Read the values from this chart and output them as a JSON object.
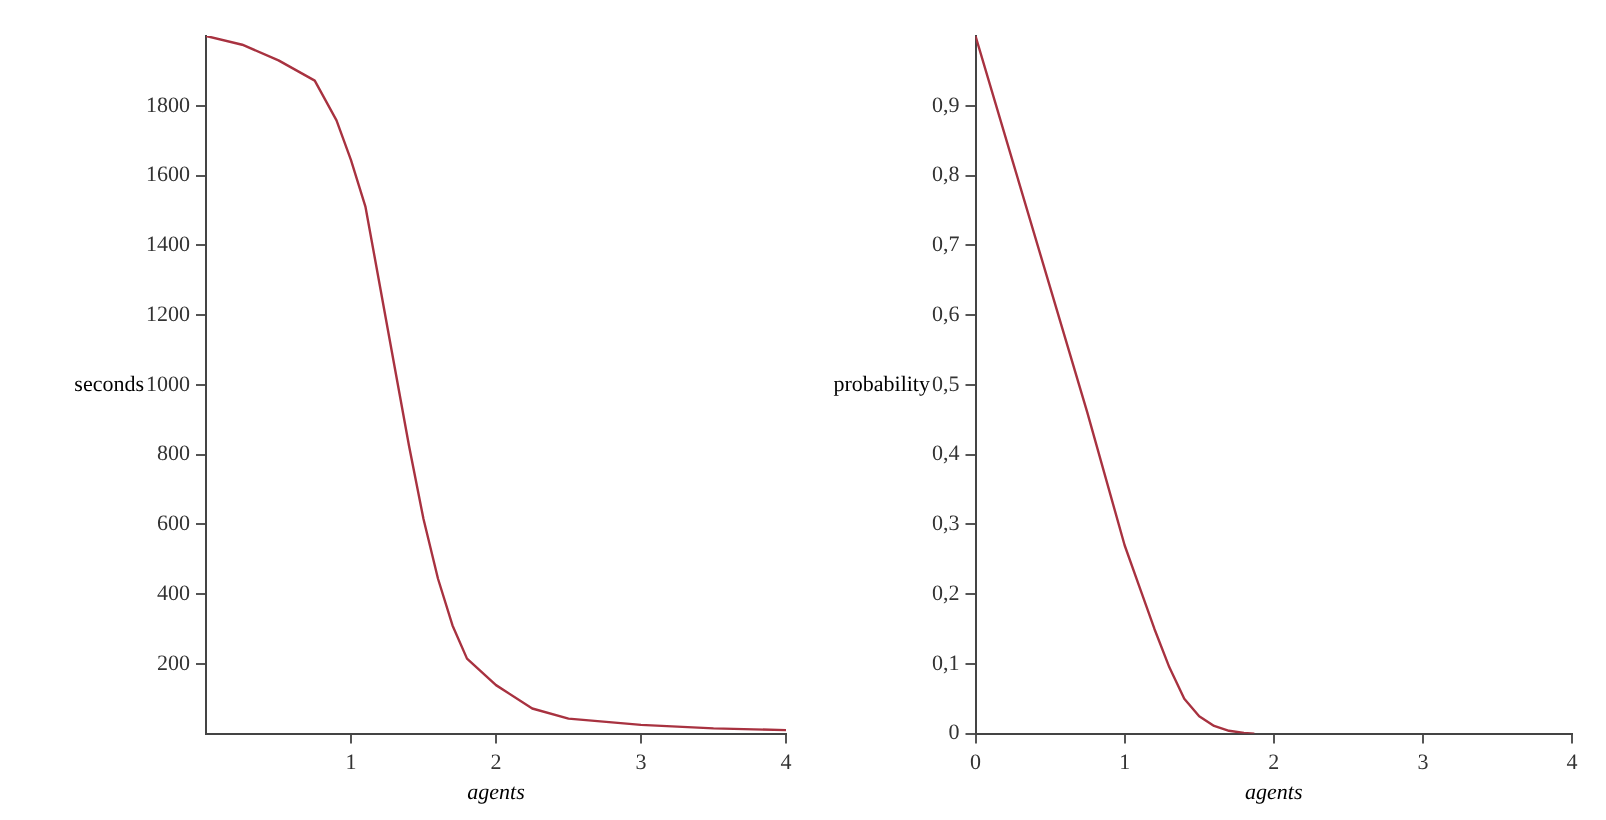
{
  "chart_data": [
    {
      "type": "line",
      "xlabel": "agents",
      "ylabel": "seconds",
      "x": [
        0,
        0.25,
        0.5,
        0.75,
        0.9,
        1.0,
        1.1,
        1.2,
        1.3,
        1.4,
        1.5,
        1.6,
        1.7,
        1.8,
        2.0,
        2.25,
        2.5,
        3.0,
        3.5,
        4.0
      ],
      "series": [
        {
          "color": "#a83240",
          "values": [
            2000,
            1975,
            1930,
            1872,
            1758,
            1644,
            1510,
            1282,
            1053,
            825,
            615,
            444,
            310,
            215,
            139,
            72,
            43,
            25,
            15,
            10
          ]
        }
      ],
      "xlim": [
        0,
        4
      ],
      "xticks": [
        1,
        2,
        3,
        4
      ],
      "ylim": [
        0,
        2000
      ],
      "yticks": [
        200,
        400,
        600,
        800,
        1000,
        1200,
        1400,
        1600,
        1800
      ],
      "grid": false,
      "legend": false
    },
    {
      "type": "line",
      "xlabel": "agents",
      "ylabel": "probability",
      "x": [
        0,
        0.25,
        0.5,
        0.75,
        1.0,
        1.1,
        1.2,
        1.3,
        1.4,
        1.5,
        1.6,
        1.7,
        1.8,
        1.87
      ],
      "series": [
        {
          "color": "#a83240",
          "values": [
            1.0,
            0.82,
            0.64,
            0.46,
            0.27,
            0.21,
            0.15,
            0.095,
            0.05,
            0.025,
            0.011,
            0.004,
            0.001,
            0
          ]
        }
      ],
      "xlim": [
        0,
        4
      ],
      "xticks": [
        0,
        1,
        2,
        3,
        4
      ],
      "ylim": [
        0,
        1
      ],
      "yticks": [
        {
          "value": 0,
          "label": "0"
        },
        {
          "value": 0.1,
          "label": "0,1"
        },
        {
          "value": 0.2,
          "label": "0,2"
        },
        {
          "value": 0.3,
          "label": "0,3"
        },
        {
          "value": 0.4,
          "label": "0,4"
        },
        {
          "value": 0.5,
          "label": "0,5"
        },
        {
          "value": 0.6,
          "label": "0,6"
        },
        {
          "value": 0.7,
          "label": "0,7"
        },
        {
          "value": 0.8,
          "label": "0,8"
        },
        {
          "value": 0.9,
          "label": "0,9"
        }
      ],
      "grid": false,
      "legend": false
    }
  ]
}
